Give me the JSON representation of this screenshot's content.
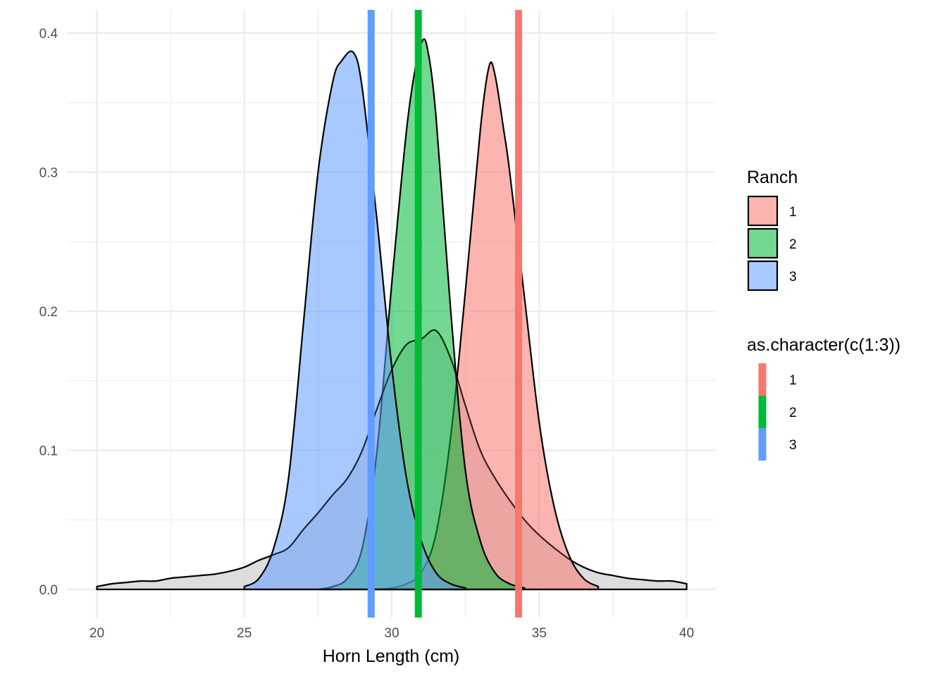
{
  "chart_data": {
    "type": "area",
    "subtype": "density",
    "title": "",
    "xlabel": "Horn Length (cm)",
    "ylabel": "",
    "xlim": [
      20,
      40
    ],
    "ylim": [
      0,
      0.4
    ],
    "x_ticks": [
      20,
      25,
      30,
      35,
      40
    ],
    "x_tick_labels": [
      "20",
      "25",
      "30",
      "35",
      "40"
    ],
    "y_ticks": [
      0.0,
      0.1,
      0.2,
      0.3,
      0.4
    ],
    "y_tick_labels": [
      "0.0",
      "0.1",
      "0.2",
      "0.3",
      "0.4"
    ],
    "grid": true,
    "legend_position": "right",
    "overall_density": {
      "color": "#d9d9d9",
      "x": [
        20.0,
        20.5,
        21.0,
        21.5,
        22.0,
        22.5,
        23.0,
        23.5,
        24.0,
        24.5,
        25.0,
        25.5,
        26.0,
        26.5,
        27.0,
        27.5,
        28.0,
        28.5,
        29.0,
        29.5,
        30.0,
        30.5,
        31.0,
        31.5,
        32.0,
        32.5,
        33.0,
        33.5,
        34.0,
        34.5,
        35.0,
        35.5,
        36.0,
        36.5,
        37.0,
        37.5,
        38.0,
        38.5,
        39.0,
        39.5,
        40.0
      ],
      "y": [
        0.002,
        0.004,
        0.005,
        0.006,
        0.006,
        0.008,
        0.009,
        0.01,
        0.011,
        0.013,
        0.016,
        0.021,
        0.025,
        0.03,
        0.043,
        0.055,
        0.068,
        0.08,
        0.1,
        0.13,
        0.158,
        0.176,
        0.18,
        0.186,
        0.166,
        0.132,
        0.1,
        0.08,
        0.064,
        0.05,
        0.039,
        0.03,
        0.022,
        0.016,
        0.012,
        0.01,
        0.008,
        0.007,
        0.006,
        0.006,
        0.004
      ]
    },
    "series": [
      {
        "name": "1",
        "fill": "#f8766d",
        "x": [
          29.5,
          30.0,
          30.5,
          31.0,
          31.5,
          32.0,
          32.5,
          33.0,
          33.3,
          33.5,
          33.8,
          34.0,
          34.5,
          35.0,
          35.5,
          36.0,
          36.5,
          37.0
        ],
        "y": [
          0.0,
          0.001,
          0.004,
          0.012,
          0.04,
          0.11,
          0.215,
          0.33,
          0.376,
          0.37,
          0.33,
          0.3,
          0.21,
          0.12,
          0.06,
          0.025,
          0.008,
          0.002
        ]
      },
      {
        "name": "2",
        "fill": "#00ba38",
        "x": [
          27.5,
          28.0,
          28.5,
          29.0,
          29.5,
          30.0,
          30.5,
          30.8,
          31.0,
          31.2,
          31.5,
          32.0,
          32.5,
          33.0,
          33.5,
          34.0,
          34.5
        ],
        "y": [
          0.0,
          0.002,
          0.008,
          0.03,
          0.1,
          0.22,
          0.33,
          0.375,
          0.393,
          0.39,
          0.34,
          0.2,
          0.085,
          0.035,
          0.012,
          0.004,
          0.001
        ]
      },
      {
        "name": "3",
        "fill": "#619cff",
        "x": [
          25.0,
          25.5,
          26.0,
          26.5,
          27.0,
          27.5,
          28.0,
          28.3,
          28.7,
          29.0,
          29.5,
          30.0,
          30.5,
          31.0,
          31.5,
          32.0,
          32.5
        ],
        "y": [
          0.002,
          0.008,
          0.03,
          0.08,
          0.19,
          0.3,
          0.365,
          0.38,
          0.386,
          0.36,
          0.265,
          0.16,
          0.08,
          0.035,
          0.012,
          0.004,
          0.001
        ]
      }
    ],
    "mean_lines": [
      {
        "label": "1",
        "color": "#f8766d",
        "x": 34.3
      },
      {
        "label": "2",
        "color": "#00ba38",
        "x": 30.9
      },
      {
        "label": "3",
        "color": "#619cff",
        "x": 29.3
      }
    ],
    "legends": [
      {
        "title": "Ranch",
        "kind": "fill",
        "entries": [
          "1",
          "2",
          "3"
        ],
        "colors": [
          "#f8766d",
          "#00ba38",
          "#619cff"
        ]
      },
      {
        "title": "as.character(c(1:3))",
        "kind": "line",
        "entries": [
          "1",
          "2",
          "3"
        ],
        "colors": [
          "#f8766d",
          "#00ba38",
          "#619cff"
        ]
      }
    ]
  }
}
